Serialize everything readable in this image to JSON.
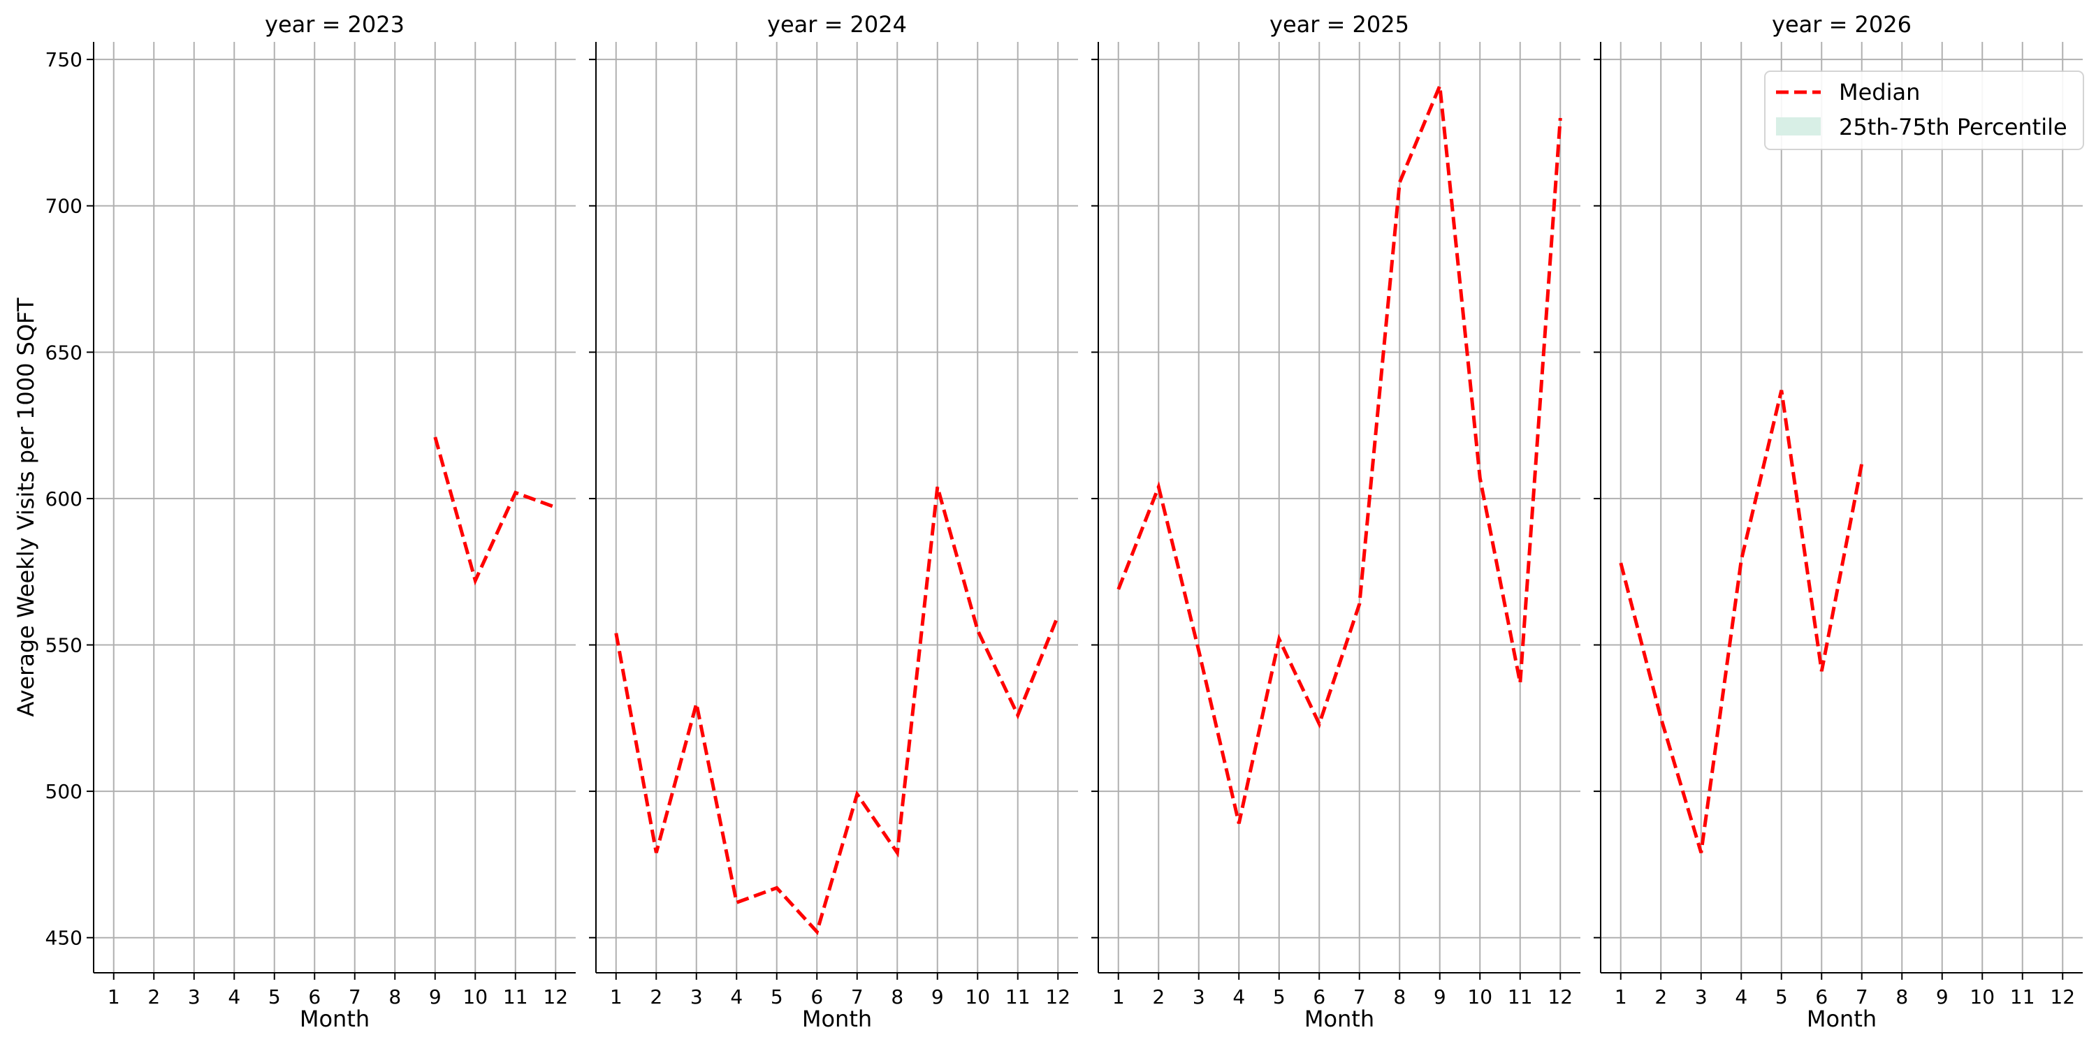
{
  "chart_data": {
    "type": "line",
    "ylabel": "Average Weekly Visits per 1000 SQFT",
    "xlabel": "Month",
    "ylim": [
      438,
      756
    ],
    "xlim": [
      0.5,
      12.5
    ],
    "yticks": [
      450,
      500,
      550,
      600,
      650,
      700,
      750
    ],
    "xticks": [
      1,
      2,
      3,
      4,
      5,
      6,
      7,
      8,
      9,
      10,
      11,
      12
    ],
    "grid": true,
    "legend": {
      "placement": "top-right",
      "entries": [
        {
          "label": "Median",
          "style": "dashed-line",
          "color": "#ff0000"
        },
        {
          "label": "25th-75th Percentile",
          "style": "fill",
          "color": "#d8efe6"
        }
      ]
    },
    "panels": [
      {
        "title": "year = 2023",
        "x": [
          9,
          10,
          11,
          12
        ],
        "median": [
          621,
          572,
          602,
          597
        ]
      },
      {
        "title": "year = 2024",
        "x": [
          1,
          2,
          3,
          4,
          5,
          6,
          7,
          8,
          9,
          10,
          11,
          12
        ],
        "median": [
          554,
          479,
          530,
          462,
          467,
          452,
          499,
          479,
          604,
          555,
          526,
          560
        ]
      },
      {
        "title": "year = 2025",
        "x": [
          1,
          2,
          3,
          4,
          5,
          6,
          7,
          8,
          9,
          10,
          11,
          12
        ],
        "median": [
          569,
          604,
          548,
          489,
          552,
          523,
          564,
          708,
          741,
          607,
          537,
          730
        ]
      },
      {
        "title": "year = 2026",
        "x": [
          1,
          2,
          3,
          4,
          5,
          6,
          7
        ],
        "median": [
          578,
          525,
          479,
          579,
          637,
          541,
          612
        ]
      }
    ],
    "colors": {
      "median": "#ff0000",
      "grid": "#b0b0b0",
      "axis": "#000000",
      "percentile_fill": "#d8efe6"
    }
  }
}
